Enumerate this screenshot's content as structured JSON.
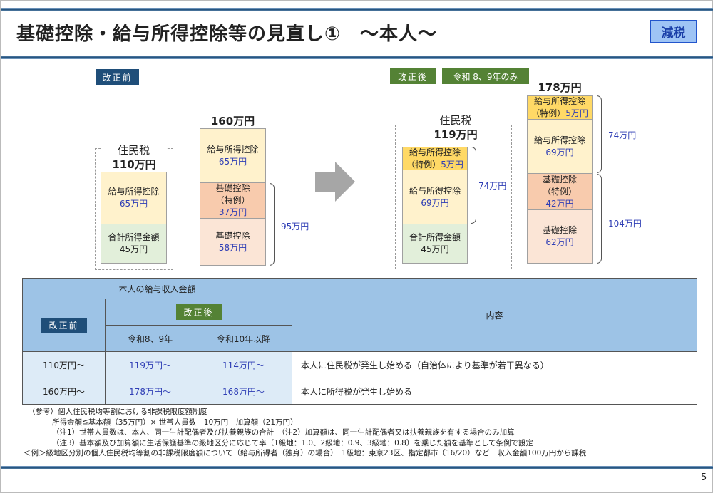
{
  "header": {
    "title": "基礎控除・給与所得控除等の見直し①　～本人～",
    "badge": "減税"
  },
  "before": {
    "label": "改正前",
    "resident": {
      "title": "住民税",
      "total": "110万円",
      "segments": [
        {
          "name": "給与所得控除",
          "value": "65万円"
        },
        {
          "name": "合計所得金額",
          "value": "45万円"
        }
      ]
    },
    "income": {
      "total": "160万円",
      "segments": [
        {
          "name": "給与所得控除",
          "value": "65万円"
        },
        {
          "name": "基礎控除",
          "sub": "（特例）",
          "value": "37万円"
        },
        {
          "name": "基礎控除",
          "value": "58万円"
        }
      ],
      "brace": "95万円"
    }
  },
  "arrow_icon": "right-arrow",
  "after": {
    "label": "改正後",
    "period": "令和 8、9年のみ",
    "resident": {
      "title": "住民税",
      "total": "119万円",
      "segments": [
        {
          "name": "給与所得控除",
          "sub": "（特例）",
          "value": "5万円"
        },
        {
          "name": "給与所得控除",
          "value": "69万円"
        },
        {
          "name": "合計所得金額",
          "value": "45万円"
        }
      ],
      "brace": "74万円"
    },
    "income": {
      "total": "178万円",
      "segments": [
        {
          "name": "給与所得控除",
          "sub": "（特例）",
          "value": "5万円"
        },
        {
          "name": "給与所得控除",
          "value": "69万円"
        },
        {
          "name": "基礎控除",
          "sub": "（特例）",
          "value": "42万円"
        },
        {
          "name": "基礎控除",
          "value": "62万円"
        }
      ],
      "brace_top": "74万円",
      "brace_bottom": "104万円"
    }
  },
  "table": {
    "header_income": "本人の給与収入金額",
    "header_before": "改正前",
    "header_after": "改正後",
    "header_r89": "令和8、9年",
    "header_r10": "令和10年以降",
    "header_content": "内容",
    "rows": [
      {
        "before": "110万円～",
        "r89": "119万円～",
        "r10": "114万円～",
        "content": "本人に住民税が発生し始める（自治体により基準が若干異なる）"
      },
      {
        "before": "160万円～",
        "r89": "178万円～",
        "r10": "168万円～",
        "content": "本人に所得税が発生し始める"
      }
    ]
  },
  "notes": [
    "（参考）個人住民税均等割における非課税限度額制度",
    "所得金額≦基本額（35万円）× 世帯人員数＋10万円＋加算額（21万円）",
    "（注1）世帯人員数は、本人、同一生計配偶者及び扶養親族の合計　（注2）加算額は、同一生計配偶者又は扶養親族を有する場合のみ加算",
    "（注3）基本額及び加算額に生活保護基準の級地区分に応じて率（1級地：1.0、2級地：0.9、3級地：0.8）を乗じた額を基準として条例で設定",
    "＜例＞級地区分別の個人住民税均等割の非課税限度額について（給与所得者（独身）の場合）　1級地：東京23区、指定都市（16/20）など　収入金額100万円から課税"
  ],
  "page_number": "5"
}
